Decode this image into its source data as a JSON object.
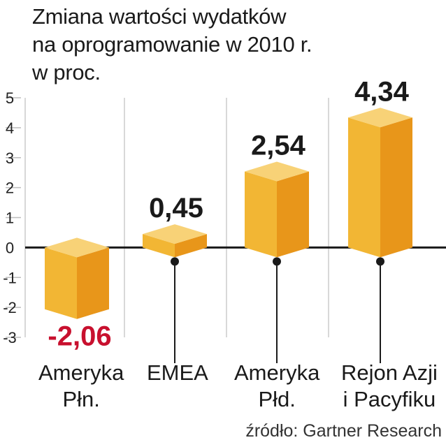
{
  "title_lines": [
    "Zmiana wartości wydatków",
    "na oprogramowanie w 2010 r.",
    "w proc."
  ],
  "source": "źródło: Gartner Research",
  "colors": {
    "bar_front": "#f2b634",
    "bar_side": "#e8961a",
    "bar_top": "#f8d277",
    "negative_label": "#c8102e",
    "axis": "#1a1a1a",
    "grid": "#bdbdbd"
  },
  "chart_data": {
    "type": "bar",
    "categories": [
      [
        "Ameryka",
        "Płn."
      ],
      [
        "EMEA"
      ],
      [
        "Ameryka",
        "Płd."
      ],
      [
        "Rejon Azji",
        "i Pacyfiku"
      ]
    ],
    "values": [
      -2.06,
      0.45,
      2.54,
      4.34
    ],
    "value_labels": [
      "-2,06",
      "0,45",
      "2,54",
      "4,34"
    ],
    "ylim": [
      -3,
      5
    ],
    "yticks": [
      "5",
      "4",
      "3",
      "2",
      "1",
      "0",
      "-1",
      "-2",
      "-3"
    ],
    "grid": true
  }
}
